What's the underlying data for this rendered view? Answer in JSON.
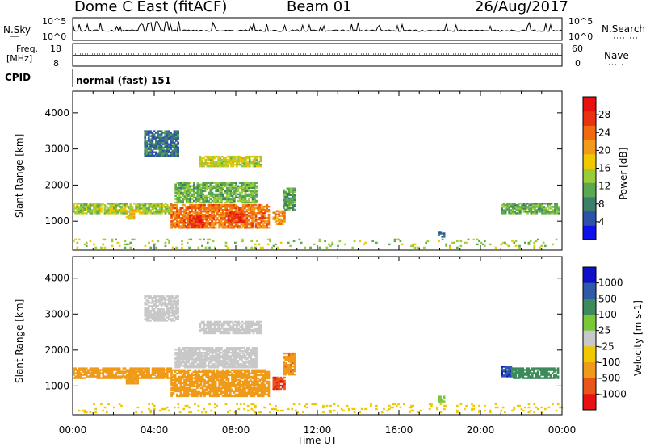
{
  "header": {
    "station": "Dome C East (fitACF)",
    "beam": "Beam 01",
    "date": "26/Aug/2017"
  },
  "noise_panel": {
    "left_label": "N.Sky",
    "right_label": "N.Search",
    "ticks_left": [
      "10^5",
      "10^0"
    ],
    "ticks_right": [
      "10^5",
      "10^0"
    ]
  },
  "freq_panel": {
    "label_line1": "Freq.",
    "label_line2": "[MHz]",
    "ticks_left": [
      "18",
      "8"
    ],
    "ticks_right": [
      "60",
      "0"
    ],
    "right_label": "Nave"
  },
  "cpid": {
    "label": "CPID",
    "value": "normal (fast) 151"
  },
  "axes": {
    "ylabel": "Slant Range [km]",
    "xlabel": "Time UT",
    "yticks": [
      "1000",
      "2000",
      "3000",
      "4000"
    ],
    "xticks": [
      "00:00",
      "04:00",
      "08:00",
      "12:00",
      "16:00",
      "20:00",
      "00:00"
    ]
  },
  "colors": {
    "power": [
      "#1010e8",
      "#2e52a8",
      "#3d7f6a",
      "#5aa850",
      "#9bcc38",
      "#f0c800",
      "#f29a1a",
      "#f06a10",
      "#e83210",
      "#e81010"
    ],
    "velocity": [
      "#e81010",
      "#e8541a",
      "#f09a1a",
      "#f0c800",
      "#c8c8c8",
      "#78c838",
      "#3d8a5a",
      "#2e5aa8",
      "#1010c8"
    ]
  },
  "chart_data": [
    {
      "type": "heatmap",
      "title": "Power [dB]",
      "xlabel": "Time UT",
      "ylabel": "Slant Range [km]",
      "xlim": [
        0,
        24
      ],
      "ylim": [
        200,
        4600
      ],
      "colorbar": {
        "label": "Power [dB]",
        "ticks": [
          "4",
          "8",
          "12",
          "16",
          "20",
          "24",
          "28"
        ],
        "range": [
          0,
          32
        ]
      },
      "regions": [
        {
          "t0": 0.0,
          "t1": 4.8,
          "r0": 1200,
          "r1": 1500,
          "level": 14
        },
        {
          "t0": 2.6,
          "t1": 3.0,
          "r0": 1050,
          "r1": 1300,
          "level": 18
        },
        {
          "t0": 4.8,
          "t1": 9.6,
          "r0": 800,
          "r1": 1450,
          "level": 24
        },
        {
          "t0": 5.7,
          "t1": 6.4,
          "r0": 820,
          "r1": 1150,
          "level": 29
        },
        {
          "t0": 7.6,
          "t1": 8.4,
          "r0": 950,
          "r1": 1250,
          "level": 28
        },
        {
          "t0": 5.0,
          "t1": 9.0,
          "r0": 1500,
          "r1": 2050,
          "level": 12
        },
        {
          "t0": 6.2,
          "t1": 9.2,
          "r0": 2500,
          "r1": 2800,
          "level": 16
        },
        {
          "t0": 3.5,
          "t1": 5.2,
          "r0": 2800,
          "r1": 3500,
          "level": 6
        },
        {
          "t0": 9.8,
          "t1": 10.4,
          "r0": 900,
          "r1": 1300,
          "level": 22
        },
        {
          "t0": 10.3,
          "t1": 10.9,
          "r0": 1300,
          "r1": 1900,
          "level": 10
        },
        {
          "t0": 17.9,
          "t1": 18.2,
          "r0": 550,
          "r1": 720,
          "level": 6
        },
        {
          "t0": 21.0,
          "t1": 23.8,
          "r0": 1200,
          "r1": 1500,
          "level": 11
        },
        {
          "t0": 0.0,
          "t1": 24.0,
          "r0": 250,
          "r1": 500,
          "level": 14
        }
      ]
    },
    {
      "type": "heatmap",
      "title": "Velocity [m s-1]",
      "xlabel": "Time UT",
      "ylabel": "Slant Range [km]",
      "xlim": [
        0,
        24
      ],
      "ylim": [
        200,
        4600
      ],
      "colorbar": {
        "label": "Velocity [m s-1]",
        "ticks": [
          "1000",
          "500",
          "100",
          "25",
          "-25",
          "-100",
          "-500",
          "-1000"
        ]
      },
      "regions": [
        {
          "t0": 0.0,
          "t1": 4.8,
          "r0": 1200,
          "r1": 1500,
          "v": -150
        },
        {
          "t0": 2.6,
          "t1": 3.2,
          "r0": 1050,
          "r1": 1300,
          "v": -300
        },
        {
          "t0": 4.8,
          "t1": 9.6,
          "r0": 700,
          "r1": 1450,
          "v": -300
        },
        {
          "t0": 5.0,
          "t1": 9.0,
          "r0": 1500,
          "r1": 2050,
          "v": 0
        },
        {
          "t0": 6.2,
          "t1": 9.2,
          "r0": 2450,
          "r1": 2800,
          "v": 0
        },
        {
          "t0": 3.5,
          "t1": 5.2,
          "r0": 2800,
          "r1": 3500,
          "v": 0
        },
        {
          "t0": 9.8,
          "t1": 10.4,
          "r0": 900,
          "r1": 1250,
          "v": -900
        },
        {
          "t0": 10.3,
          "t1": 10.9,
          "r0": 1300,
          "r1": 1900,
          "v": -400
        },
        {
          "t0": 17.9,
          "t1": 18.2,
          "r0": 550,
          "r1": 700,
          "v": 60
        },
        {
          "t0": 21.0,
          "t1": 21.5,
          "r0": 1250,
          "r1": 1550,
          "v": 900
        },
        {
          "t0": 21.5,
          "t1": 23.8,
          "r0": 1200,
          "r1": 1500,
          "v": 200
        },
        {
          "t0": 0.0,
          "t1": 24.0,
          "r0": 250,
          "r1": 500,
          "v": -60
        }
      ]
    }
  ]
}
